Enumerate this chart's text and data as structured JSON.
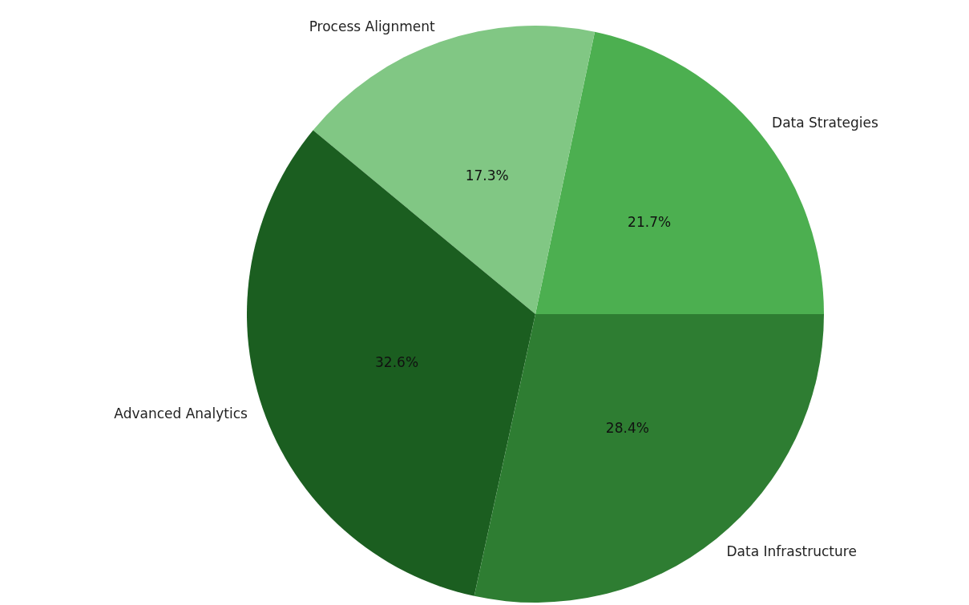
{
  "chart_data": {
    "type": "pie",
    "categories": [
      "Data Strategies",
      "Process Alignment",
      "Advanced Analytics",
      "Data Infrastructure"
    ],
    "values": [
      21.7,
      17.3,
      32.6,
      28.4
    ],
    "colors": [
      "#4caf50",
      "#81c784",
      "#1b5e20",
      "#2e7d32"
    ],
    "value_labels": [
      "21.7%",
      "17.3%",
      "32.6%",
      "28.4%"
    ],
    "legend": false
  }
}
